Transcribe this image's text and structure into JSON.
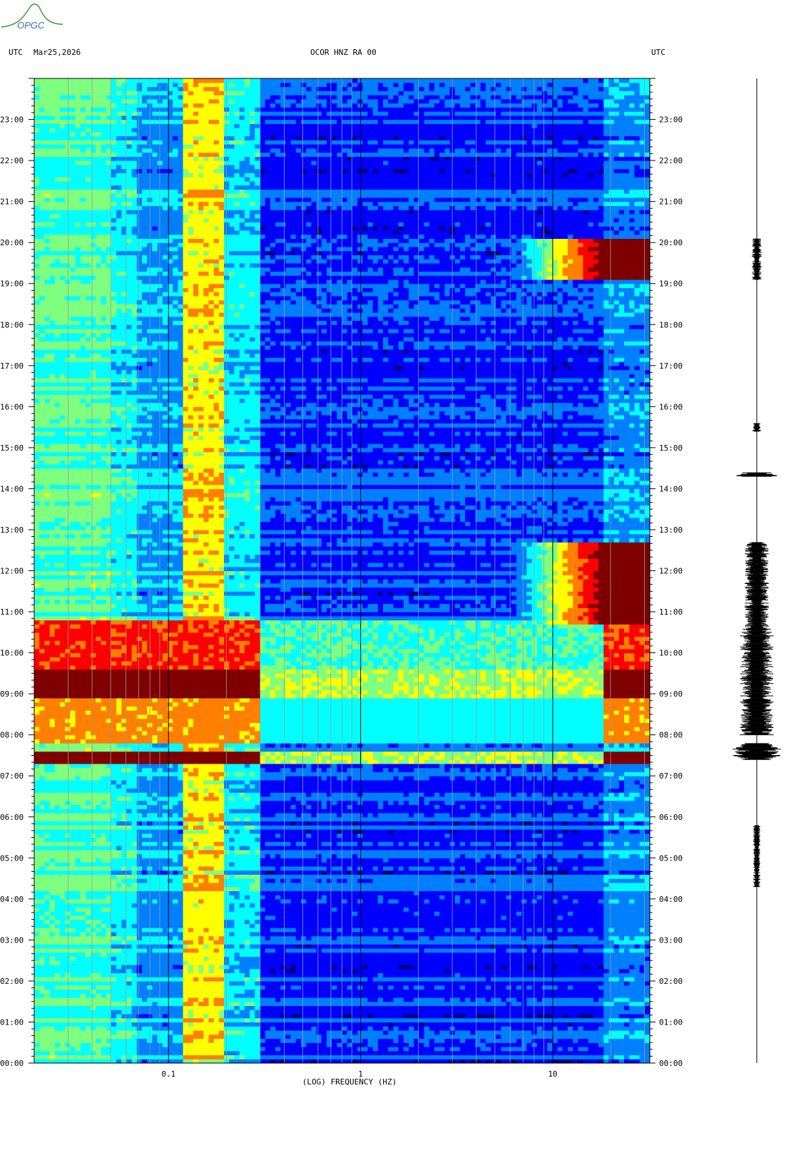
{
  "logo": {
    "text": "OPGC",
    "icon": "opgc-volcano-logo"
  },
  "header": {
    "left_tz": "UTC",
    "date": "Mar25,2026",
    "station": "OCOR HNZ RA 00",
    "right_tz": "UTC"
  },
  "chart_data": {
    "type": "heatmap",
    "title": "OCOR HNZ RA 00",
    "xlabel": "(LOG) FREQUENCY (HZ)",
    "ylabel": "",
    "x_scale": "log",
    "xlim": [
      0.02,
      32
    ],
    "x_ticks": [
      {
        "value": 0.1,
        "label": "0.1"
      },
      {
        "value": 1,
        "label": "1"
      },
      {
        "value": 10,
        "label": "10"
      }
    ],
    "ylim_hours": [
      0,
      24
    ],
    "y_ticks": [
      "00:00",
      "01:00",
      "02:00",
      "03:00",
      "04:00",
      "05:00",
      "06:00",
      "07:00",
      "08:00",
      "09:00",
      "10:00",
      "11:00",
      "12:00",
      "13:00",
      "14:00",
      "15:00",
      "16:00",
      "17:00",
      "18:00",
      "19:00",
      "20:00",
      "21:00",
      "22:00",
      "23:00"
    ],
    "colormap": [
      "#00007f",
      "#0000ff",
      "#007fff",
      "#00ffff",
      "#7fff7f",
      "#ffff00",
      "#ff7f00",
      "#ff0000",
      "#7f0000"
    ],
    "grid": true,
    "events": [
      {
        "start": 7.35,
        "end": 7.55,
        "fmin": 0.02,
        "fmax": 32,
        "level": 1.0
      },
      {
        "start": 7.8,
        "end": 8.9,
        "fmin": 0.02,
        "fmax": 32,
        "level": 0.7
      },
      {
        "start": 8.95,
        "end": 9.6,
        "fmin": 0.02,
        "fmax": 32,
        "level": 1.0
      },
      {
        "start": 9.6,
        "end": 10.75,
        "fmin": 0.02,
        "fmax": 32,
        "level": 0.8
      },
      {
        "start": 10.75,
        "end": 12.7,
        "fmin": 6,
        "fmax": 32,
        "level": 0.95
      },
      {
        "start": 19.1,
        "end": 20.1,
        "fmin": 6,
        "fmax": 32,
        "level": 0.95
      }
    ],
    "trace_events": [
      {
        "start": 7.4,
        "end": 7.8,
        "amp": 1.0
      },
      {
        "start": 8.0,
        "end": 10.6,
        "amp": 0.7
      },
      {
        "start": 10.6,
        "end": 12.7,
        "amp": 0.5
      },
      {
        "start": 14.3,
        "end": 14.4,
        "amp": 0.9
      },
      {
        "start": 15.4,
        "end": 15.6,
        "amp": 0.2
      },
      {
        "start": 19.1,
        "end": 20.1,
        "amp": 0.2
      },
      {
        "start": 4.3,
        "end": 5.8,
        "amp": 0.15
      }
    ]
  }
}
